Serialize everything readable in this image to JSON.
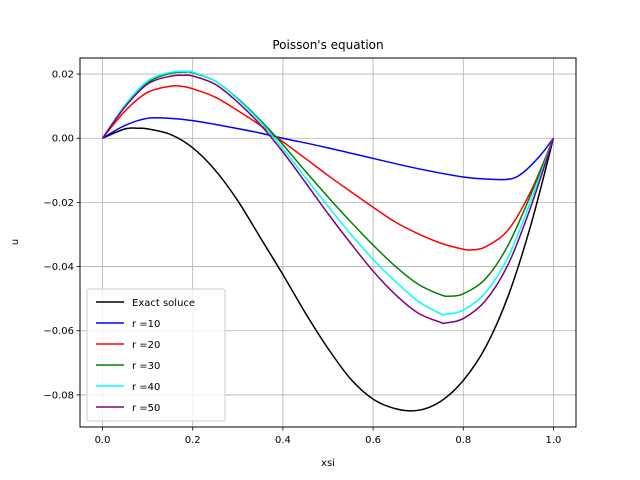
{
  "chart_data": {
    "type": "line",
    "title": "Poisson's equation",
    "xlabel": "xsi",
    "ylabel": "u",
    "xlim": [
      -0.05,
      1.05
    ],
    "ylim": [
      -0.09,
      0.025
    ],
    "xticks": [
      0.0,
      0.2,
      0.4,
      0.6,
      0.8,
      1.0
    ],
    "xtick_labels": [
      "0.0",
      "0.2",
      "0.4",
      "0.6",
      "0.8",
      "1.0"
    ],
    "yticks": [
      -0.08,
      -0.06,
      -0.04,
      -0.02,
      0.0,
      0.02
    ],
    "ytick_labels": [
      "−0.08",
      "−0.06",
      "−0.04",
      "−0.02",
      "0.00",
      "0.02"
    ],
    "grid": true,
    "legend_position": "lower-left",
    "series": [
      {
        "name": "Exact soluce",
        "color": "#000000",
        "points": [
          [
            0.0,
            0.0
          ],
          [
            0.05,
            0.0029
          ],
          [
            0.08,
            0.0031
          ],
          [
            0.1,
            0.0029
          ],
          [
            0.15,
            0.0012
          ],
          [
            0.2,
            -0.003
          ],
          [
            0.25,
            -0.01
          ],
          [
            0.3,
            -0.0195
          ],
          [
            0.35,
            -0.031
          ],
          [
            0.4,
            -0.0425
          ],
          [
            0.45,
            -0.0545
          ],
          [
            0.5,
            -0.0655
          ],
          [
            0.55,
            -0.075
          ],
          [
            0.6,
            -0.0813
          ],
          [
            0.65,
            -0.0843
          ],
          [
            0.7,
            -0.0848
          ],
          [
            0.75,
            -0.082
          ],
          [
            0.8,
            -0.0755
          ],
          [
            0.85,
            -0.065
          ],
          [
            0.9,
            -0.049
          ],
          [
            0.95,
            -0.027
          ],
          [
            1.0,
            0.0
          ]
        ]
      },
      {
        "name": "r =10",
        "color": "#0000ff",
        "points": [
          [
            0.0,
            0.0
          ],
          [
            0.05,
            0.004
          ],
          [
            0.1,
            0.0062
          ],
          [
            0.15,
            0.0062
          ],
          [
            0.2,
            0.0055
          ],
          [
            0.25,
            0.0043
          ],
          [
            0.3,
            0.003
          ],
          [
            0.35,
            0.0016
          ],
          [
            0.4,
            0.0
          ],
          [
            0.5,
            -0.003
          ],
          [
            0.6,
            -0.0063
          ],
          [
            0.7,
            -0.0095
          ],
          [
            0.8,
            -0.0121
          ],
          [
            0.85,
            -0.0127
          ],
          [
            0.9,
            -0.0128
          ],
          [
            0.93,
            -0.011
          ],
          [
            0.97,
            -0.0055
          ],
          [
            1.0,
            0.0
          ]
        ]
      },
      {
        "name": "r =20",
        "color": "#ff0000",
        "points": [
          [
            0.0,
            0.0
          ],
          [
            0.05,
            0.0085
          ],
          [
            0.1,
            0.0143
          ],
          [
            0.15,
            0.0162
          ],
          [
            0.175,
            0.0162
          ],
          [
            0.2,
            0.0154
          ],
          [
            0.25,
            0.0128
          ],
          [
            0.3,
            0.0086
          ],
          [
            0.35,
            0.004
          ],
          [
            0.4,
            -0.0011
          ],
          [
            0.45,
            -0.0063
          ],
          [
            0.5,
            -0.0116
          ],
          [
            0.55,
            -0.0166
          ],
          [
            0.6,
            -0.0215
          ],
          [
            0.65,
            -0.0262
          ],
          [
            0.7,
            -0.0298
          ],
          [
            0.75,
            -0.0327
          ],
          [
            0.8,
            -0.0346
          ],
          [
            0.82,
            -0.0348
          ],
          [
            0.85,
            -0.0338
          ],
          [
            0.9,
            -0.0285
          ],
          [
            0.95,
            -0.0165
          ],
          [
            1.0,
            0.0
          ]
        ]
      },
      {
        "name": "r =30",
        "color": "#008000",
        "points": [
          [
            0.0,
            0.0
          ],
          [
            0.05,
            0.0101
          ],
          [
            0.1,
            0.0173
          ],
          [
            0.15,
            0.0202
          ],
          [
            0.185,
            0.0206
          ],
          [
            0.2,
            0.0204
          ],
          [
            0.25,
            0.0178
          ],
          [
            0.3,
            0.0123
          ],
          [
            0.35,
            0.0056
          ],
          [
            0.4,
            -0.002
          ],
          [
            0.45,
            -0.0103
          ],
          [
            0.5,
            -0.0183
          ],
          [
            0.55,
            -0.026
          ],
          [
            0.6,
            -0.0333
          ],
          [
            0.65,
            -0.04
          ],
          [
            0.7,
            -0.0455
          ],
          [
            0.75,
            -0.0488
          ],
          [
            0.77,
            -0.0492
          ],
          [
            0.8,
            -0.0485
          ],
          [
            0.85,
            -0.0437
          ],
          [
            0.9,
            -0.0332
          ],
          [
            0.95,
            -0.0175
          ],
          [
            1.0,
            0.0
          ]
        ]
      },
      {
        "name": "r =40",
        "color": "#00ffff",
        "points": [
          [
            0.0,
            0.0
          ],
          [
            0.05,
            0.0104
          ],
          [
            0.1,
            0.0178
          ],
          [
            0.15,
            0.0205
          ],
          [
            0.19,
            0.0208
          ],
          [
            0.2,
            0.0206
          ],
          [
            0.25,
            0.0178
          ],
          [
            0.3,
            0.0121
          ],
          [
            0.35,
            0.0051
          ],
          [
            0.4,
            -0.0033
          ],
          [
            0.45,
            -0.0123
          ],
          [
            0.5,
            -0.0212
          ],
          [
            0.55,
            -0.0298
          ],
          [
            0.6,
            -0.0378
          ],
          [
            0.65,
            -0.0447
          ],
          [
            0.7,
            -0.0508
          ],
          [
            0.75,
            -0.0547
          ],
          [
            0.76,
            -0.0549
          ],
          [
            0.8,
            -0.0536
          ],
          [
            0.85,
            -0.048
          ],
          [
            0.9,
            -0.0369
          ],
          [
            0.95,
            -0.0195
          ],
          [
            1.0,
            0.0
          ]
        ]
      },
      {
        "name": "r =50",
        "color": "#800080",
        "points": [
          [
            0.0,
            0.0
          ],
          [
            0.05,
            0.0098
          ],
          [
            0.1,
            0.0169
          ],
          [
            0.15,
            0.0193
          ],
          [
            0.18,
            0.0196
          ],
          [
            0.2,
            0.0194
          ],
          [
            0.25,
            0.0168
          ],
          [
            0.3,
            0.0112
          ],
          [
            0.35,
            0.0042
          ],
          [
            0.4,
            -0.0043
          ],
          [
            0.45,
            -0.0138
          ],
          [
            0.5,
            -0.0235
          ],
          [
            0.55,
            -0.0327
          ],
          [
            0.6,
            -0.0414
          ],
          [
            0.65,
            -0.0488
          ],
          [
            0.7,
            -0.0545
          ],
          [
            0.75,
            -0.0574
          ],
          [
            0.76,
            -0.0576
          ],
          [
            0.8,
            -0.0562
          ],
          [
            0.85,
            -0.0505
          ],
          [
            0.9,
            -0.0392
          ],
          [
            0.95,
            -0.0213
          ],
          [
            1.0,
            0.0
          ]
        ]
      }
    ]
  }
}
